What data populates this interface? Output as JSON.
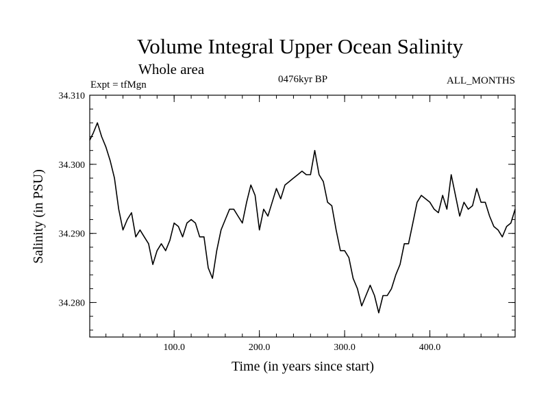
{
  "chart_data": {
    "type": "line",
    "title": "Volume Integral Upper Ocean Salinity",
    "subtitle": "Whole area",
    "left_label": "Expt = tfMgn",
    "center_label": "0476kyr BP",
    "right_label": "ALL_MONTHS",
    "xlabel": "Time (in years since start)",
    "ylabel": "Salinity (in PSU)",
    "xlim": [
      1,
      500
    ],
    "ylim": [
      34.275,
      34.31
    ],
    "x_ticks": [
      100,
      200,
      300,
      400
    ],
    "x_tick_labels": [
      "100.0",
      "200.0",
      "300.0",
      "400.0"
    ],
    "y_ticks": [
      34.28,
      34.29,
      34.3,
      34.31
    ],
    "y_tick_labels": [
      "34.280",
      "34.290",
      "34.300",
      "34.310"
    ],
    "grid": false,
    "line_color": "#000000",
    "series": [
      {
        "x": [
          1,
          5,
          10,
          15,
          20,
          25,
          30,
          35,
          40,
          45,
          50,
          55,
          60,
          65,
          70,
          75,
          80,
          85,
          90,
          95,
          100,
          105,
          110,
          115,
          120,
          125,
          130,
          135,
          140,
          145,
          150,
          155,
          160,
          165,
          170,
          175,
          180,
          185,
          190,
          195,
          200,
          205,
          210,
          215,
          220,
          225,
          230,
          235,
          240,
          245,
          250,
          255,
          260,
          265,
          270,
          275,
          280,
          285,
          290,
          295,
          300,
          305,
          310,
          315,
          320,
          325,
          330,
          335,
          340,
          345,
          350,
          355,
          360,
          365,
          370,
          375,
          380,
          385,
          390,
          395,
          400,
          405,
          410,
          415,
          420,
          425,
          430,
          435,
          440,
          445,
          450,
          455,
          460,
          465,
          470,
          475,
          480,
          485,
          490,
          495,
          500
        ],
        "values": [
          34.3035,
          34.3045,
          34.306,
          34.304,
          34.3025,
          34.3005,
          34.298,
          34.2935,
          34.2905,
          34.292,
          34.293,
          34.2895,
          34.2905,
          34.2895,
          34.2885,
          34.2855,
          34.2875,
          34.2885,
          34.2875,
          34.289,
          34.2915,
          34.291,
          34.2895,
          34.2915,
          34.292,
          34.2915,
          34.2895,
          34.2895,
          34.285,
          34.2835,
          34.2875,
          34.2905,
          34.292,
          34.2935,
          34.2935,
          34.2925,
          34.2915,
          34.2945,
          34.297,
          34.2955,
          34.2905,
          34.2935,
          34.2925,
          34.2945,
          34.2965,
          34.295,
          34.297,
          34.2975,
          34.298,
          34.2985,
          34.299,
          34.2985,
          34.2985,
          34.302,
          34.2985,
          34.2975,
          34.2945,
          34.294,
          34.2905,
          34.2875,
          34.2875,
          34.2865,
          34.2835,
          34.282,
          34.2795,
          34.281,
          34.2825,
          34.281,
          34.2785,
          34.281,
          34.281,
          34.282,
          34.284,
          34.2855,
          34.2885,
          34.2885,
          34.2915,
          34.2945,
          34.2955,
          34.295,
          34.2945,
          34.2935,
          34.293,
          34.2955,
          34.2935,
          34.2985,
          34.2955,
          34.2925,
          34.2945,
          34.2935,
          34.294,
          34.2965,
          34.2945,
          34.2945,
          34.2925,
          34.291,
          34.2905,
          34.2895,
          34.291,
          34.2915,
          34.2935
        ]
      }
    ]
  }
}
